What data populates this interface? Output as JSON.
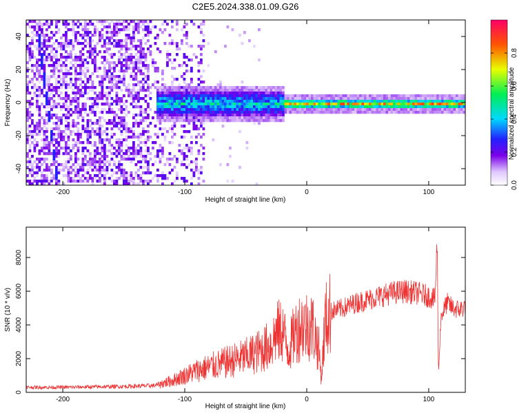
{
  "title": "C2E5.2024.338.01.09.G26",
  "chart_data": [
    {
      "type": "heatmap",
      "xlabel": "Height of straight line (km)",
      "ylabel": "Frequency (Hz)",
      "xlim": [
        -230,
        130
      ],
      "ylim": [
        -50,
        50
      ],
      "xticks": [
        -200,
        -100,
        0,
        100
      ],
      "yticks": [
        -40,
        -20,
        0,
        20,
        40
      ],
      "grid": false,
      "colorbar": {
        "label": "Normalized spectral amplitude",
        "range": [
          0,
          1
        ],
        "ticks": [
          0.0,
          0.2,
          0.4,
          0.6,
          0.8
        ],
        "tick_labels": [
          "0.0",
          "0.2",
          "0.4",
          "0.6",
          "0.8"
        ]
      },
      "description_values": {
        "noise_region_x": [
          -230,
          -85
        ],
        "signal_band_center_hz": 0,
        "signal_band_start_x": -125,
        "diagonal_streak_x": [
          -222,
          -205
        ]
      }
    },
    {
      "type": "line",
      "xlabel": "Height of straight line (km)",
      "ylabel": "SNR (10 * v/v)",
      "xlim": [
        -230,
        130
      ],
      "ylim": [
        0,
        9800
      ],
      "xticks": [
        -200,
        -100,
        0,
        100
      ],
      "yticks": [
        0,
        2000,
        4000,
        6000,
        8000
      ],
      "grid": false,
      "series": [
        {
          "color": "#ee3333",
          "x": [
            -230,
            -200,
            -150,
            -125,
            -110,
            -100,
            -90,
            -80,
            -70,
            -60,
            -50,
            -40,
            -30,
            -25,
            -20,
            -15,
            -10,
            -5,
            0,
            5,
            10,
            12,
            15,
            20,
            30,
            40,
            50,
            60,
            70,
            80,
            90,
            100,
            105,
            107,
            108,
            110,
            115,
            120,
            125,
            130
          ],
          "y": [
            300,
            300,
            350,
            400,
            700,
            1000,
            1300,
            1500,
            1700,
            1900,
            2100,
            2400,
            2800,
            3500,
            3700,
            2500,
            3500,
            4000,
            4000,
            3900,
            2500,
            800,
            4200,
            4800,
            5000,
            5300,
            5500,
            5700,
            5900,
            6000,
            5900,
            5700,
            5500,
            8800,
            1000,
            4500,
            5300,
            5000,
            4900,
            5100
          ]
        }
      ]
    }
  ]
}
